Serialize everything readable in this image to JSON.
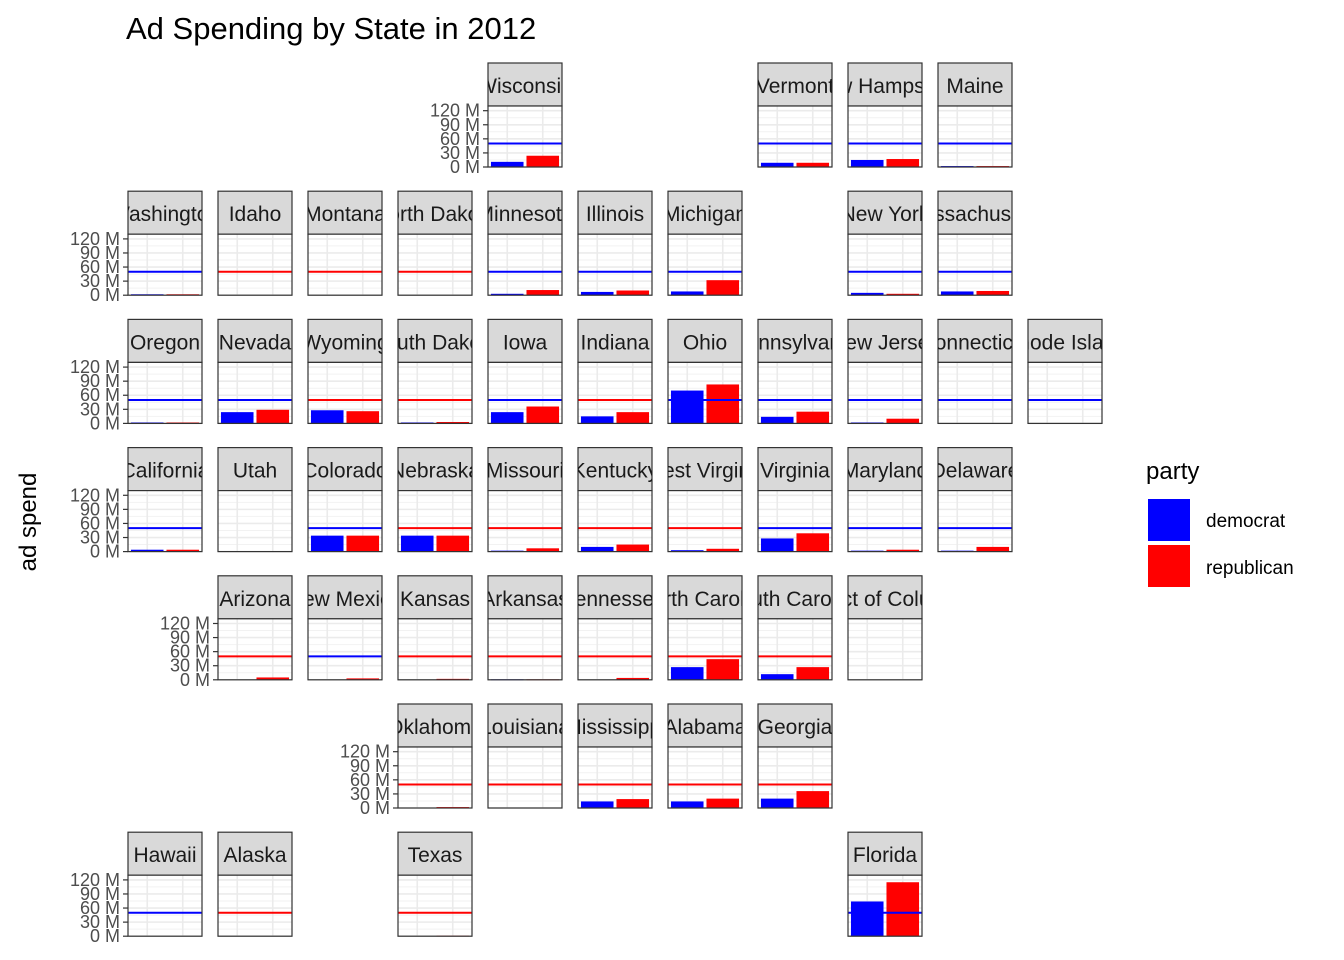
{
  "chart_data": {
    "type": "bar",
    "title": "Ad Spending by State in 2012",
    "ylabel": "ad spend",
    "xlabel": "",
    "ylim": [
      0,
      130
    ],
    "y_ticks": [
      "0 M",
      "30 M",
      "60 M",
      "90 M",
      "120 M"
    ],
    "y_tick_values": [
      0,
      30,
      60,
      90,
      120
    ],
    "grid": true,
    "legend": {
      "title": "party",
      "position": "right",
      "entries": [
        {
          "name": "democrat",
          "color": "#0000FF"
        },
        {
          "name": "republican",
          "color": "#FF0000"
        }
      ]
    },
    "panels": [
      {
        "label": "Wisconsin",
        "row": 0,
        "col": 5,
        "dem": 11,
        "rep": 24,
        "ref": 50,
        "ref_party": "democrat"
      },
      {
        "label": "Vermont",
        "row": 0,
        "col": 8,
        "dem": 9,
        "rep": 9,
        "ref": 50,
        "ref_party": "democrat"
      },
      {
        "label": "New Hampshire",
        "row": 0,
        "col": 9,
        "dem": 15,
        "rep": 17,
        "ref": 50,
        "ref_party": "democrat"
      },
      {
        "label": "Maine",
        "row": 0,
        "col": 10,
        "dem": 2,
        "rep": 2,
        "ref": 50,
        "ref_party": "democrat"
      },
      {
        "label": "Washington",
        "row": 1,
        "col": 1,
        "dem": 2,
        "rep": 2,
        "ref": 50,
        "ref_party": "democrat"
      },
      {
        "label": "Idaho",
        "row": 1,
        "col": 2,
        "dem": 0,
        "rep": 0,
        "ref": 50,
        "ref_party": "republican"
      },
      {
        "label": "Montana",
        "row": 1,
        "col": 3,
        "dem": 0,
        "rep": 0,
        "ref": 50,
        "ref_party": "republican"
      },
      {
        "label": "North Dakota",
        "row": 1,
        "col": 4,
        "dem": 0,
        "rep": 0,
        "ref": 50,
        "ref_party": "republican"
      },
      {
        "label": "Minnesota",
        "row": 1,
        "col": 5,
        "dem": 3,
        "rep": 11,
        "ref": 50,
        "ref_party": "democrat"
      },
      {
        "label": "Illinois",
        "row": 1,
        "col": 6,
        "dem": 7,
        "rep": 10,
        "ref": 50,
        "ref_party": "democrat"
      },
      {
        "label": "Michigan",
        "row": 1,
        "col": 7,
        "dem": 8,
        "rep": 32,
        "ref": 50,
        "ref_party": "democrat"
      },
      {
        "label": "New York",
        "row": 1,
        "col": 9,
        "dem": 5,
        "rep": 3,
        "ref": 50,
        "ref_party": "democrat"
      },
      {
        "label": "Massachusetts",
        "row": 1,
        "col": 10,
        "dem": 8,
        "rep": 9,
        "ref": 50,
        "ref_party": "democrat"
      },
      {
        "label": "Oregon",
        "row": 2,
        "col": 1,
        "dem": 2,
        "rep": 2,
        "ref": 50,
        "ref_party": "democrat"
      },
      {
        "label": "Nevada",
        "row": 2,
        "col": 2,
        "dem": 24,
        "rep": 29,
        "ref": 50,
        "ref_party": "democrat"
      },
      {
        "label": "Wyoming",
        "row": 2,
        "col": 3,
        "dem": 28,
        "rep": 26,
        "ref": 50,
        "ref_party": "republican"
      },
      {
        "label": "South Dakota",
        "row": 2,
        "col": 4,
        "dem": 2,
        "rep": 3,
        "ref": 50,
        "ref_party": "republican"
      },
      {
        "label": "Iowa",
        "row": 2,
        "col": 5,
        "dem": 24,
        "rep": 36,
        "ref": 50,
        "ref_party": "democrat"
      },
      {
        "label": "Indiana",
        "row": 2,
        "col": 6,
        "dem": 15,
        "rep": 24,
        "ref": 50,
        "ref_party": "republican"
      },
      {
        "label": "Ohio",
        "row": 2,
        "col": 7,
        "dem": 70,
        "rep": 83,
        "ref": 50,
        "ref_party": "democrat"
      },
      {
        "label": "Pennsylvania",
        "row": 2,
        "col": 8,
        "dem": 14,
        "rep": 25,
        "ref": 50,
        "ref_party": "democrat"
      },
      {
        "label": "New Jersey",
        "row": 2,
        "col": 9,
        "dem": 2,
        "rep": 10,
        "ref": 50,
        "ref_party": "democrat"
      },
      {
        "label": "Connecticut",
        "row": 2,
        "col": 10,
        "dem": 0,
        "rep": 0,
        "ref": 50,
        "ref_party": "democrat"
      },
      {
        "label": "Rhode Island",
        "row": 2,
        "col": 11,
        "dem": 0,
        "rep": 0,
        "ref": 50,
        "ref_party": "democrat"
      },
      {
        "label": "California",
        "row": 3,
        "col": 1,
        "dem": 4,
        "rep": 4,
        "ref": 50,
        "ref_party": "democrat"
      },
      {
        "label": "Utah",
        "row": 3,
        "col": 2,
        "dem": 0,
        "rep": 0,
        "ref": null,
        "ref_party": null
      },
      {
        "label": "Colorado",
        "row": 3,
        "col": 3,
        "dem": 34,
        "rep": 34,
        "ref": 50,
        "ref_party": "democrat"
      },
      {
        "label": "Nebraska",
        "row": 3,
        "col": 4,
        "dem": 34,
        "rep": 34,
        "ref": 50,
        "ref_party": "republican"
      },
      {
        "label": "Missouri",
        "row": 3,
        "col": 5,
        "dem": 2,
        "rep": 7,
        "ref": 50,
        "ref_party": "republican"
      },
      {
        "label": "Kentucky",
        "row": 3,
        "col": 6,
        "dem": 10,
        "rep": 15,
        "ref": 50,
        "ref_party": "republican"
      },
      {
        "label": "West Virginia",
        "row": 3,
        "col": 7,
        "dem": 3,
        "rep": 6,
        "ref": 50,
        "ref_party": "republican"
      },
      {
        "label": "Virginia",
        "row": 3,
        "col": 8,
        "dem": 28,
        "rep": 39,
        "ref": 50,
        "ref_party": "democrat"
      },
      {
        "label": "Maryland",
        "row": 3,
        "col": 9,
        "dem": 2,
        "rep": 4,
        "ref": 50,
        "ref_party": "democrat"
      },
      {
        "label": "Delaware",
        "row": 3,
        "col": 10,
        "dem": 2,
        "rep": 10,
        "ref": 50,
        "ref_party": "democrat"
      },
      {
        "label": "Arizona",
        "row": 4,
        "col": 2,
        "dem": 0,
        "rep": 5,
        "ref": 50,
        "ref_party": "republican"
      },
      {
        "label": "New Mexico",
        "row": 4,
        "col": 3,
        "dem": 0,
        "rep": 3,
        "ref": 50,
        "ref_party": "democrat"
      },
      {
        "label": "Kansas",
        "row": 4,
        "col": 4,
        "dem": 0,
        "rep": 2,
        "ref": 50,
        "ref_party": "republican"
      },
      {
        "label": "Arkansas",
        "row": 4,
        "col": 5,
        "dem": 1,
        "rep": 1,
        "ref": 50,
        "ref_party": "republican"
      },
      {
        "label": "Tennessee",
        "row": 4,
        "col": 6,
        "dem": 0,
        "rep": 4,
        "ref": 50,
        "ref_party": "republican"
      },
      {
        "label": "North Carolina",
        "row": 4,
        "col": 7,
        "dem": 27,
        "rep": 44,
        "ref": 50,
        "ref_party": "republican"
      },
      {
        "label": "South Carolina",
        "row": 4,
        "col": 8,
        "dem": 12,
        "rep": 27,
        "ref": 50,
        "ref_party": "republican"
      },
      {
        "label": "District of Columbia",
        "row": 4,
        "col": 9,
        "dem": 0,
        "rep": 0,
        "ref": null,
        "ref_party": null
      },
      {
        "label": "Oklahoma",
        "row": 5,
        "col": 4,
        "dem": 0,
        "rep": 2,
        "ref": 50,
        "ref_party": "republican"
      },
      {
        "label": "Louisiana",
        "row": 5,
        "col": 5,
        "dem": 1,
        "rep": 1,
        "ref": 50,
        "ref_party": "republican"
      },
      {
        "label": "Mississippi",
        "row": 5,
        "col": 6,
        "dem": 14,
        "rep": 19,
        "ref": 50,
        "ref_party": "republican"
      },
      {
        "label": "Alabama",
        "row": 5,
        "col": 7,
        "dem": 14,
        "rep": 20,
        "ref": 50,
        "ref_party": "republican"
      },
      {
        "label": "Georgia",
        "row": 5,
        "col": 8,
        "dem": 20,
        "rep": 36,
        "ref": 50,
        "ref_party": "republican"
      },
      {
        "label": "Hawaii",
        "row": 6,
        "col": 1,
        "dem": 0,
        "rep": 0,
        "ref": 50,
        "ref_party": "democrat"
      },
      {
        "label": "Alaska",
        "row": 6,
        "col": 2,
        "dem": 0,
        "rep": 0,
        "ref": 50,
        "ref_party": "republican"
      },
      {
        "label": "Texas",
        "row": 6,
        "col": 4,
        "dem": 0,
        "rep": 1,
        "ref": 50,
        "ref_party": "republican"
      },
      {
        "label": "Florida",
        "row": 6,
        "col": 9,
        "dem": 74,
        "rep": 115,
        "ref": 50,
        "ref_party": "democrat"
      }
    ]
  }
}
